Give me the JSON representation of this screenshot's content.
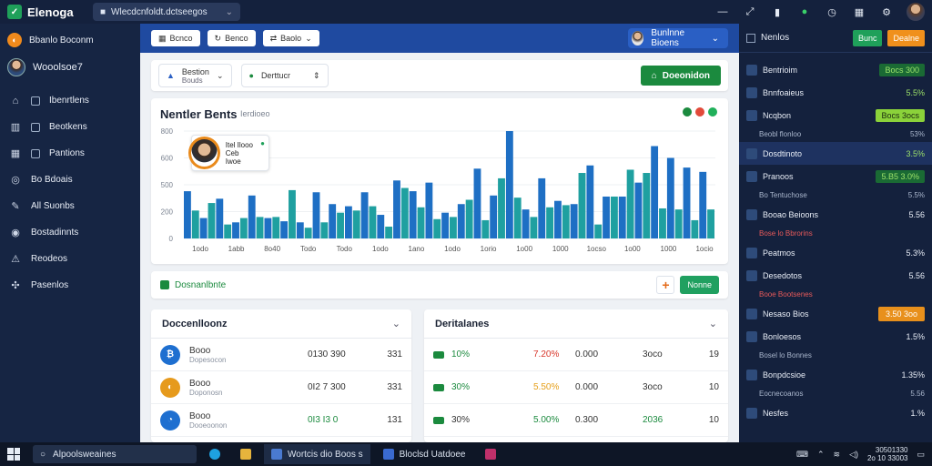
{
  "topbar": {
    "app_name": "Elenoga",
    "url": "Wlecdcnfoldt.dctseegos",
    "icons": [
      "minimize-icon",
      "expand-icon",
      "sidebar-icon",
      "status-icon",
      "clock-icon",
      "calendar-icon",
      "settings-icon"
    ]
  },
  "sidebar": {
    "brand": "Bbanlo Boconm",
    "user": "Wooolsoe7",
    "items": [
      {
        "label": "Ibenrtlens",
        "icon": "home-icon"
      },
      {
        "label": "Beotkens",
        "icon": "building-icon"
      },
      {
        "label": "Pantions",
        "icon": "calendar-icon"
      },
      {
        "label": "Bo Bdoais",
        "icon": "target-icon"
      },
      {
        "label": "All Suonbs",
        "icon": "pen-icon"
      },
      {
        "label": "Bostadinnts",
        "icon": "globe-icon"
      },
      {
        "label": "Reodeos",
        "icon": "warning-icon"
      },
      {
        "label": "Pasenlos",
        "icon": "puzzle-icon"
      }
    ]
  },
  "main_toolbar": {
    "buttons": [
      "Bcnco",
      "Benco",
      "Baolo"
    ],
    "user": "Bunlnne Bioens"
  },
  "filter": {
    "select1_label": "Bestion",
    "select1_sub": "Bouds",
    "select2_label": "Derttucr",
    "action": "Doeonidon"
  },
  "chart_data": {
    "type": "bar",
    "title": "Nentler Bents",
    "subtitle": "Ierdioeo",
    "ylim": [
      0,
      1000
    ],
    "y_ticks": [
      "0",
      "200",
      "500",
      "600",
      "800"
    ],
    "x_ticks": [
      "1odo",
      "1abb",
      "8o40",
      "Todo",
      "Todo",
      "1odo",
      "1ano",
      "1odo",
      "1orio",
      "1o00",
      "1000",
      "1ocso",
      "1o00",
      "1000",
      "1ocio"
    ],
    "series": [
      {
        "color": "#1e6fc4",
        "values": [
          440,
          190,
          370,
          150,
          400,
          190,
          160,
          150,
          430,
          320,
          300,
          430,
          220,
          540,
          440,
          520,
          240,
          320,
          650,
          400,
          1000,
          270,
          560,
          350,
          320,
          680,
          390,
          390,
          520,
          860,
          750,
          660,
          620
        ]
      },
      {
        "color": "#1fa0a0",
        "values": [
          260,
          330,
          130,
          190,
          200,
          200,
          450,
          100,
          150,
          240,
          260,
          300,
          110,
          470,
          290,
          180,
          200,
          360,
          170,
          560,
          380,
          200,
          290,
          310,
          610,
          130,
          390,
          640,
          610,
          280,
          270,
          170,
          270
        ]
      }
    ]
  },
  "popup": {
    "line1": "Itel Ilooo",
    "line2": "Ceb Iwoe"
  },
  "banner": {
    "text": "Dosnanlbnte",
    "button": "Nonne"
  },
  "panel_left": {
    "title": "Doccenlloonz",
    "rows": [
      {
        "name": "Booo",
        "sub": "Dopesocon",
        "v1": "0130 390",
        "v2": "331"
      },
      {
        "name": "Booo",
        "sub": "Doponosn",
        "v1": "0I2 7 300",
        "v2": "331"
      },
      {
        "name": "Booo",
        "sub": "Dooeoonon",
        "v1": "0I3 I3 0",
        "v2": "131"
      }
    ]
  },
  "panel_right": {
    "title": "Deritalanes",
    "rows": [
      {
        "c1": "10%",
        "c2": "7.20%",
        "c3": "0.000",
        "c4": "3oco",
        "c5": "19"
      },
      {
        "c1": "30%",
        "c2": "5.50%",
        "c3": "0.000",
        "c4": "3oco",
        "c5": "10"
      },
      {
        "c1": "30%",
        "c2": "5.00%",
        "c3": "0.300",
        "c4": "2036",
        "c5": "10"
      }
    ]
  },
  "rpanel": {
    "title": "Nenlos",
    "btn1": "Bunc",
    "btn2": "Dealne",
    "rows": [
      {
        "label": "Bentrioim",
        "value": "Bocs 300",
        "style": "dg"
      },
      {
        "label": "Bnnfoaieus",
        "value": "5.5%",
        "style": "green"
      },
      {
        "label": "Ncqbon",
        "value": "Bocs 3ocs",
        "style": "g"
      },
      {
        "label": "Beobl flonloo",
        "value": "53%",
        "style": "sub"
      },
      {
        "label": "Dosdtinoto",
        "value": "3.5%",
        "style": "greenhl"
      },
      {
        "label": "Pranoos",
        "value": "5.B5 3.0%",
        "style": "dg"
      },
      {
        "label": "Bo Tentuchose",
        "value": "5.5%",
        "style": "sub"
      },
      {
        "label": "Booao Beioons",
        "value": "5.56",
        "style": "plain"
      },
      {
        "label": "Bose lo Bbrorins",
        "value": "",
        "style": "red"
      },
      {
        "label": "Peatmos",
        "value": "5.3%",
        "style": "plain"
      },
      {
        "label": "Desedotos",
        "value": "5.56",
        "style": "plain"
      },
      {
        "label": "Booe Bootsenes",
        "value": "",
        "style": "red"
      },
      {
        "label": "Nesaso Bios",
        "value": "3.50 3oo",
        "style": "o"
      },
      {
        "label": "Bonloesos",
        "value": "1.5%",
        "style": "plain"
      },
      {
        "label": "Bosel lo Bonnes",
        "value": "",
        "style": "sub"
      },
      {
        "label": "Bonpdcsioe",
        "value": "1.35%",
        "style": "plain"
      },
      {
        "label": "Eocnecoanos",
        "value": "5.56",
        "style": "sub"
      },
      {
        "label": "Nesfes",
        "value": "1.%",
        "style": "plain"
      }
    ]
  },
  "taskbar": {
    "search": "Alpoolsweaines",
    "apps": [
      "Wortcis dio Boos s",
      "Bloclsd Uatdoee"
    ],
    "clock_line1": "30501330",
    "clock_line2": "2o 10 33003"
  }
}
